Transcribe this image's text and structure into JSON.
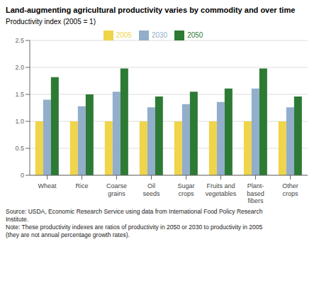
{
  "chart_data": {
    "type": "bar",
    "title": "Land-augmenting agricultural productivity varies by commodity and over time",
    "ylabel": "Productivity index (2005 = 1)",
    "annotation": "Source: USDA, Economic Research Service using data from International Food Policy Research\nInstitute.\nNote: These productivity indexes are ratios of productivity in 2050 or 2030 to productivity in 2005\n(they are not annual percentage growth rates).",
    "categories": [
      "Wheat",
      "Rice",
      "Coarse\ngrains",
      "Oil\nseeds",
      "Sugar\ncrops",
      "Fruits and\nvegetables",
      "Plant-\nbased\nfibers",
      "Other\ncrops"
    ],
    "series": [
      {
        "name": "2005",
        "color": "#F0D44A",
        "values": [
          1.0,
          1.0,
          1.0,
          1.0,
          1.0,
          1.0,
          1.0,
          1.0
        ]
      },
      {
        "name": "2030",
        "color": "#92AECB",
        "values": [
          1.4,
          1.28,
          1.55,
          1.26,
          1.32,
          1.36,
          1.61,
          1.26
        ]
      },
      {
        "name": "2050",
        "color": "#2D7A35",
        "values": [
          1.82,
          1.5,
          1.98,
          1.46,
          1.55,
          1.61,
          1.98,
          1.46
        ]
      }
    ],
    "ylim": [
      0,
      2.5
    ],
    "yticks": [
      0,
      0.5,
      {
        "value": 1.0,
        "label": "1.0"
      },
      1.5,
      {
        "value": 2.0,
        "label": "2.0"
      },
      2.5
    ],
    "grid": true,
    "legend": "top"
  }
}
